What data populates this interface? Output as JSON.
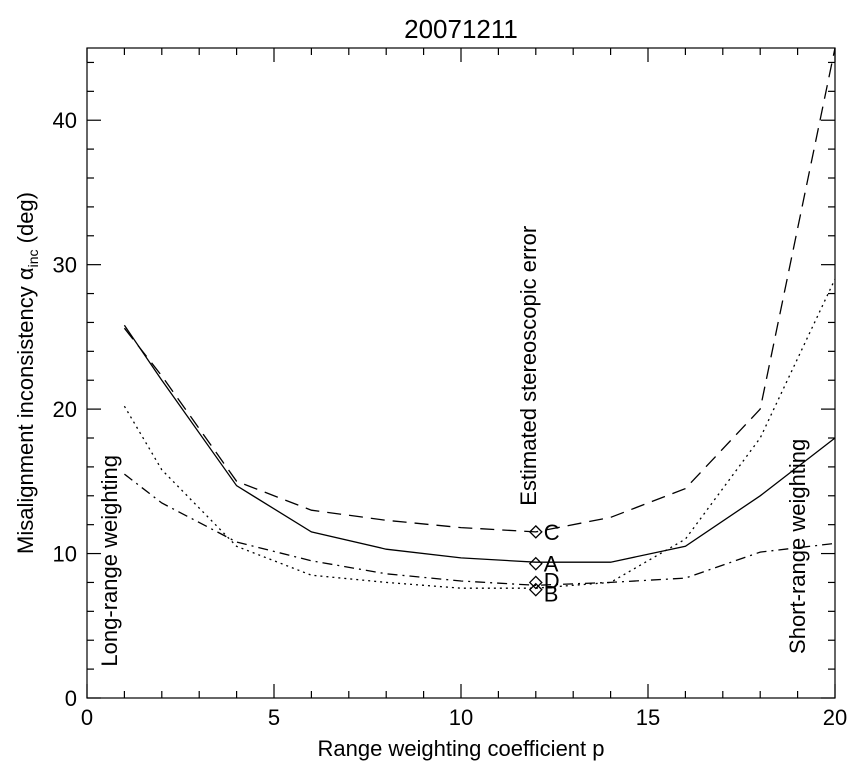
{
  "chart_data": {
    "type": "line",
    "title": "20071211",
    "xlabel": "Range weighting coefficient p",
    "ylabel_main": "Misalignment inconsistency α",
    "ylabel_sub": "inc",
    "ylabel_unit": " (deg)",
    "xlim": [
      0,
      20
    ],
    "ylim": [
      0,
      45
    ],
    "x_ticks": [
      0,
      5,
      10,
      15,
      20
    ],
    "y_ticks": [
      0,
      10,
      20,
      30,
      40
    ],
    "grid": false,
    "annotations": [
      {
        "text": "Long-range weighting",
        "x": 0.8,
        "y": 9.5
      },
      {
        "text": "Estimated stereoscopic error",
        "x": 12,
        "y": 23
      },
      {
        "text": "Short-range weighting",
        "x": 19.2,
        "y": 10.5
      }
    ],
    "series": [
      {
        "line_style": "solid",
        "x": [
          1,
          2,
          4,
          6,
          8,
          10,
          12,
          14,
          16,
          18,
          20
        ],
        "y": [
          25.8,
          22.0,
          14.7,
          11.5,
          10.3,
          9.7,
          9.4,
          9.4,
          10.5,
          14.0,
          18.0
        ]
      },
      {
        "line_style": "dashed",
        "x": [
          1,
          2,
          4,
          6,
          8,
          10,
          12,
          14,
          16,
          18,
          20
        ],
        "y": [
          25.6,
          22.3,
          15.0,
          13.0,
          12.3,
          11.8,
          11.5,
          12.5,
          14.5,
          20.0,
          45.0
        ]
      },
      {
        "line_style": "dotted",
        "x": [
          1,
          2,
          4,
          6,
          8,
          10,
          12,
          14,
          16,
          18,
          20
        ],
        "y": [
          20.2,
          15.8,
          10.5,
          8.5,
          8.0,
          7.6,
          7.6,
          8.0,
          11.0,
          18.0,
          29.0
        ]
      },
      {
        "line_style": "dashdot",
        "x": [
          1,
          2,
          4,
          6,
          8,
          10,
          12,
          14,
          16,
          18,
          20
        ],
        "y": [
          15.5,
          13.5,
          10.8,
          9.5,
          8.6,
          8.1,
          7.8,
          8.0,
          8.3,
          10.1,
          10.7
        ]
      }
    ],
    "markers": [
      {
        "label": "C",
        "x": 12,
        "y": 11.5
      },
      {
        "label": "A",
        "x": 12,
        "y": 9.3
      },
      {
        "label": "D",
        "x": 12,
        "y": 8.0
      },
      {
        "label": "B",
        "x": 12,
        "y": 7.5
      }
    ]
  }
}
